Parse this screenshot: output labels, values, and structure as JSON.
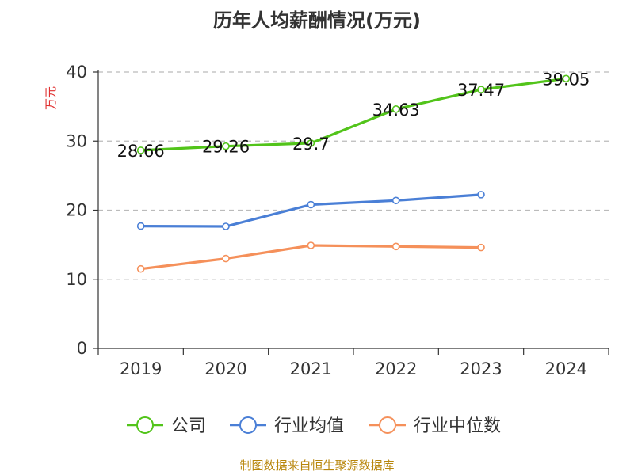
{
  "chart_data": {
    "type": "line",
    "title": "历年人均薪酬情况(万元)",
    "ylabel": "万元",
    "xlabel": "",
    "categories": [
      "2019",
      "2020",
      "2021",
      "2022",
      "2023",
      "2024"
    ],
    "ylim": [
      0,
      40
    ],
    "yticks": [
      0,
      10,
      20,
      30,
      40
    ],
    "grid": true,
    "legend_position": "bottom",
    "series": [
      {
        "name": "公司",
        "color": "#52c41a",
        "values": [
          28.66,
          29.26,
          29.7,
          34.63,
          37.47,
          39.05
        ],
        "labels": [
          "28.66",
          "29.26",
          "29.7",
          "34.63",
          "37.47",
          "39.05"
        ],
        "show_labels": true
      },
      {
        "name": "行业均值",
        "color": "#4a7fd6",
        "values": [
          17.7,
          17.65,
          20.8,
          21.4,
          22.25,
          null
        ],
        "show_labels": false
      },
      {
        "name": "行业中位数",
        "color": "#f5905a",
        "values": [
          11.5,
          13.0,
          14.9,
          14.75,
          14.6,
          null
        ],
        "show_labels": false
      }
    ]
  },
  "source_text": "制图数据来自恒生聚源数据库"
}
